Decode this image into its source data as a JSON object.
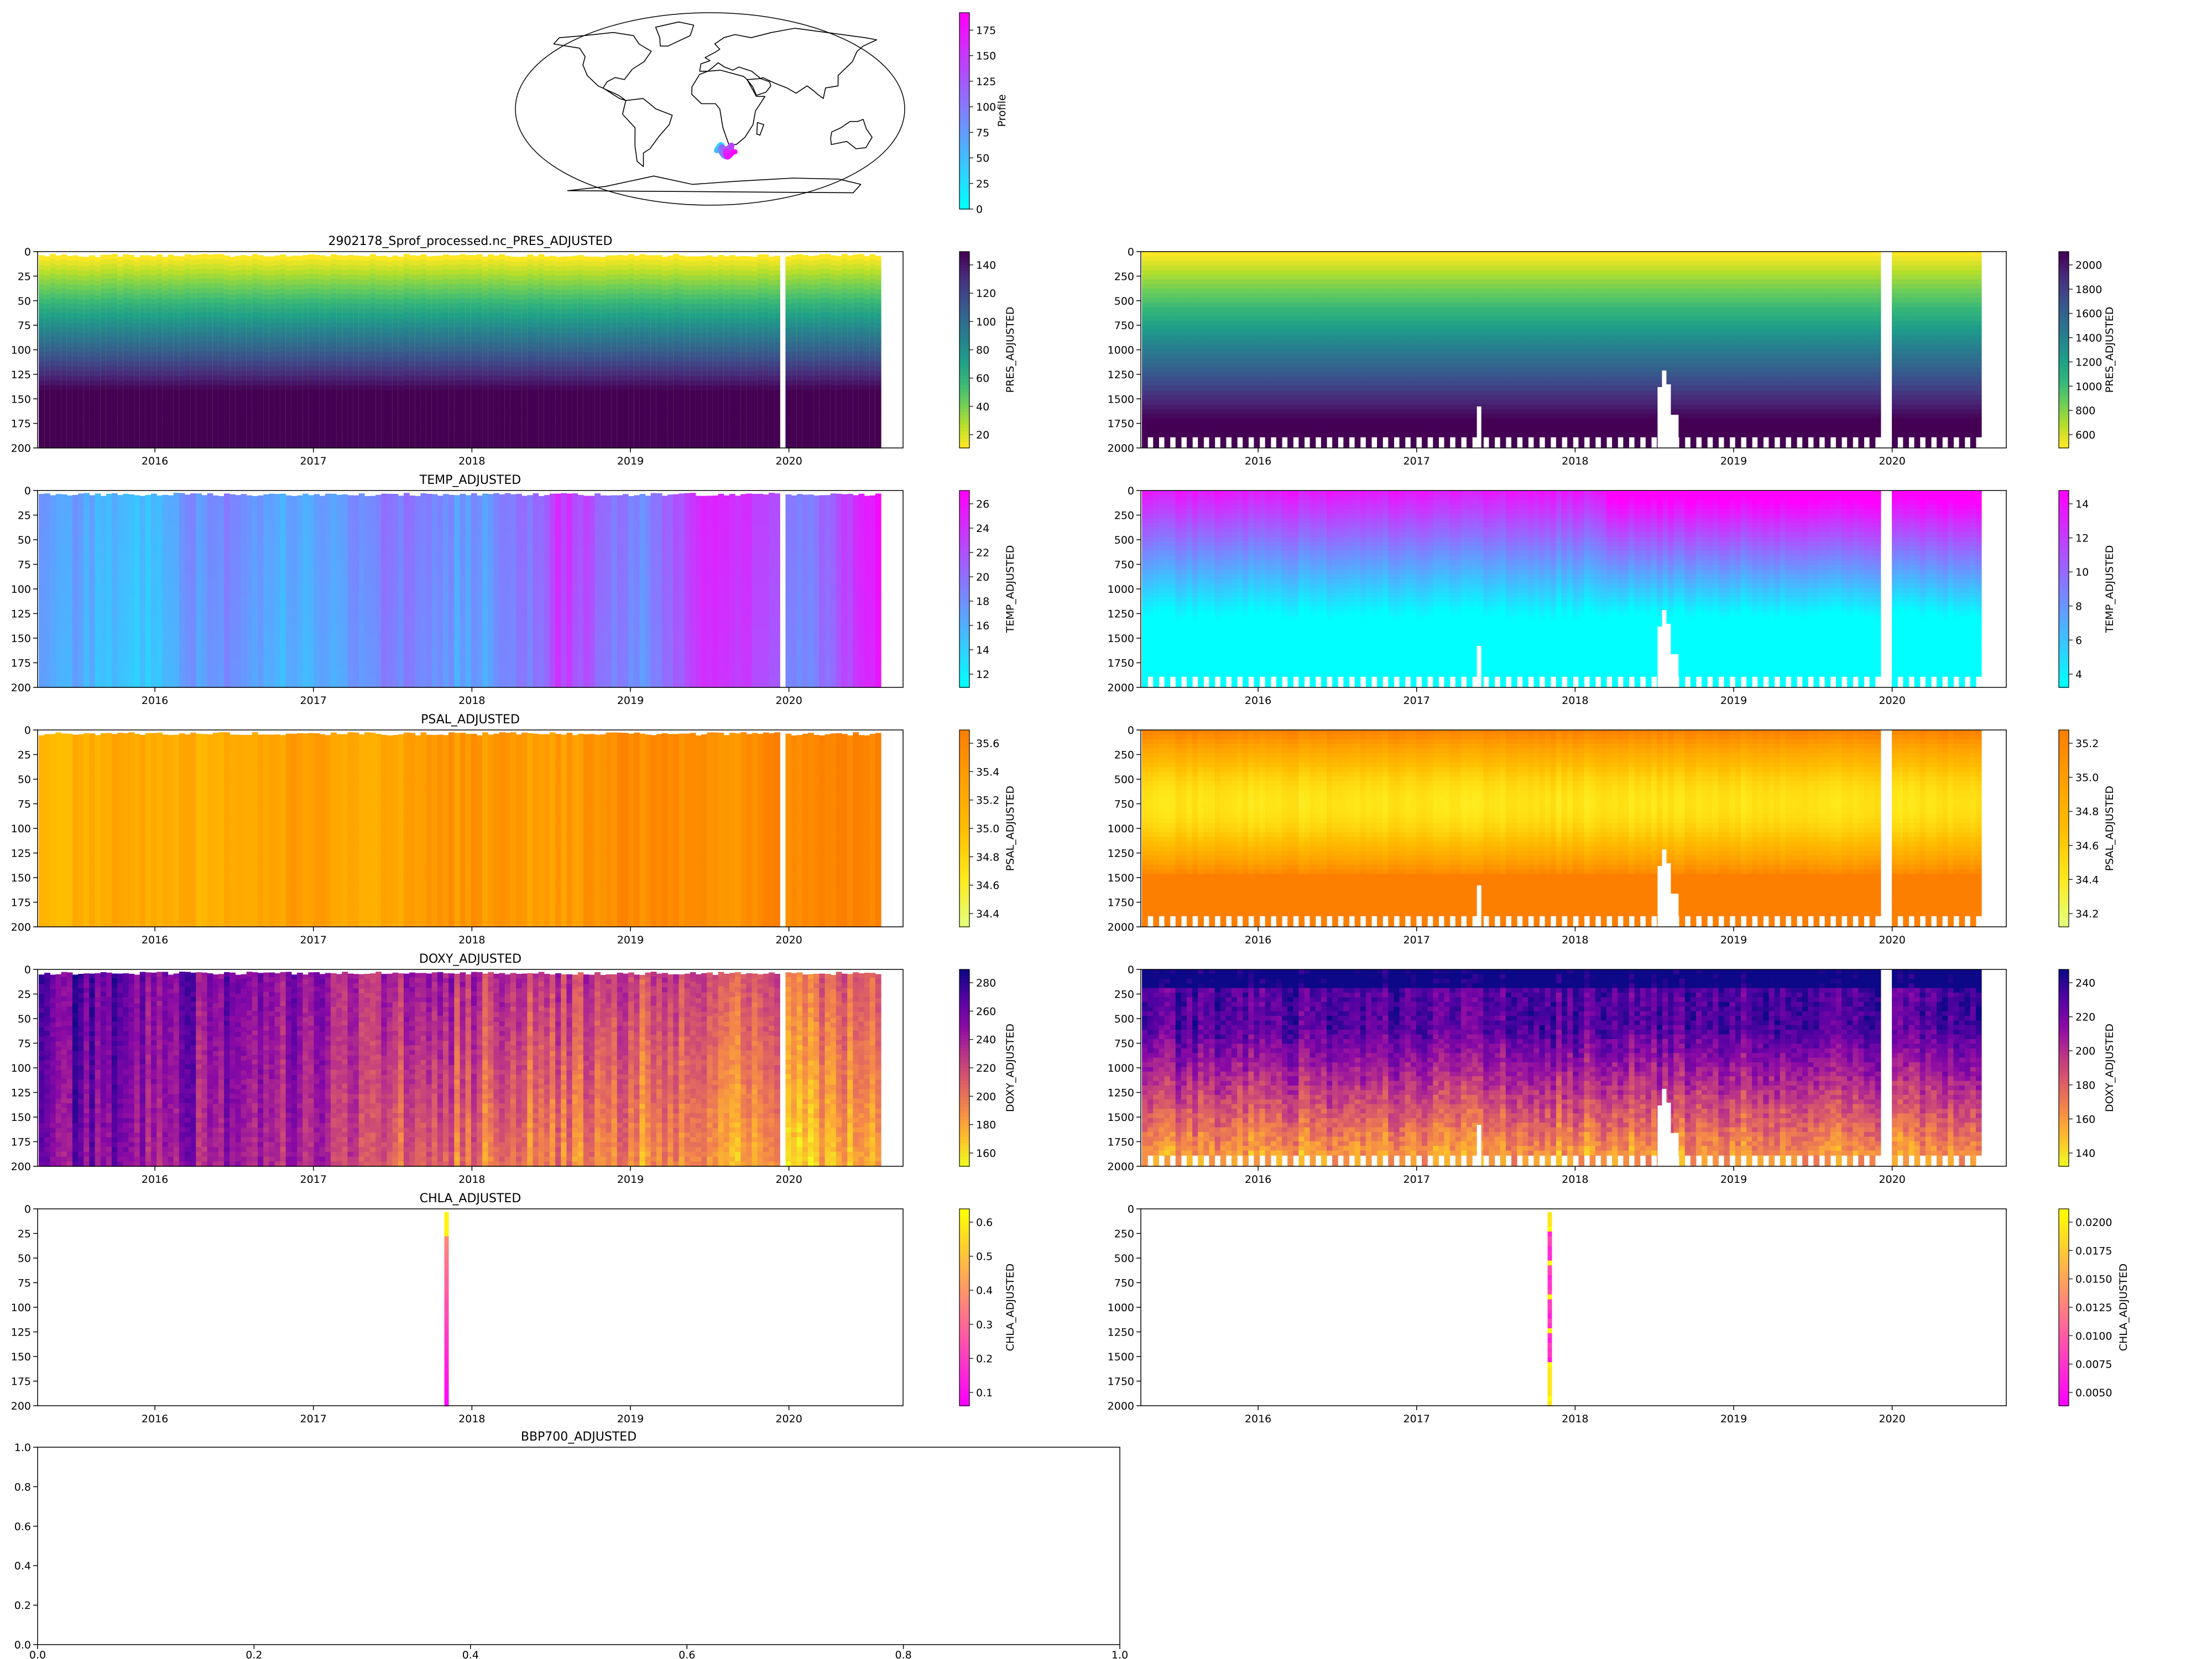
{
  "figure": {
    "float_id": "2902178"
  },
  "map": {
    "colorbar_label": "Profile",
    "colorbar_ticks": [
      "0",
      "25",
      "50",
      "75",
      "100",
      "125",
      "150",
      "175"
    ],
    "colormap": [
      "#00ffff",
      "#ff00ff"
    ],
    "track_region": "South Atlantic, south of Africa"
  },
  "chart_data": [
    {
      "type": "heatmap",
      "id": "pres-top",
      "title": "2902178_Sprof_processed.nc_PRES_ADJUSTED",
      "ylabel": "",
      "xlabel": "",
      "xticks": [
        "2016",
        "2017",
        "2018",
        "2019",
        "2020"
      ],
      "yticks": [
        "0",
        "25",
        "50",
        "75",
        "100",
        "125",
        "150",
        "175",
        "200"
      ],
      "ylim": [
        200,
        0
      ],
      "colorbar": {
        "label": "PRES_ADJUSTED",
        "ticks": [
          "20",
          "40",
          "60",
          "80",
          "100",
          "120",
          "140"
        ],
        "colormap": "viridis_r"
      },
      "x_range": [
        "2015-04",
        "2020-06"
      ]
    },
    {
      "type": "heatmap",
      "id": "pres-full",
      "title": "",
      "xticks": [
        "2016",
        "2017",
        "2018",
        "2019",
        "2020"
      ],
      "yticks": [
        "0",
        "250",
        "500",
        "750",
        "1000",
        "1250",
        "1500",
        "1750",
        "2000"
      ],
      "ylim": [
        2000,
        0
      ],
      "colorbar": {
        "label": "PRES_ADJUSTED",
        "ticks": [
          "600",
          "800",
          "1000",
          "1200",
          "1400",
          "1600",
          "1800",
          "2000"
        ],
        "colormap": "viridis_r"
      }
    },
    {
      "type": "heatmap",
      "id": "temp-top",
      "title": "TEMP_ADJUSTED",
      "xticks": [
        "2016",
        "2017",
        "2018",
        "2019",
        "2020"
      ],
      "yticks": [
        "0",
        "25",
        "50",
        "75",
        "100",
        "125",
        "150",
        "175",
        "200"
      ],
      "ylim": [
        200,
        0
      ],
      "colorbar": {
        "label": "TEMP_ADJUSTED",
        "ticks": [
          "12",
          "14",
          "16",
          "18",
          "20",
          "22",
          "24",
          "26"
        ],
        "colormap": "cool"
      }
    },
    {
      "type": "heatmap",
      "id": "temp-full",
      "title": "",
      "xticks": [
        "2016",
        "2017",
        "2018",
        "2019",
        "2020"
      ],
      "yticks": [
        "0",
        "250",
        "500",
        "750",
        "1000",
        "1250",
        "1500",
        "1750",
        "2000"
      ],
      "ylim": [
        2000,
        0
      ],
      "colorbar": {
        "label": "TEMP_ADJUSTED",
        "ticks": [
          "4",
          "6",
          "8",
          "10",
          "12",
          "14"
        ],
        "colormap": "cool"
      }
    },
    {
      "type": "heatmap",
      "id": "psal-top",
      "title": "PSAL_ADJUSTED",
      "xticks": [
        "2016",
        "2017",
        "2018",
        "2019",
        "2020"
      ],
      "yticks": [
        "0",
        "25",
        "50",
        "75",
        "100",
        "125",
        "150",
        "175",
        "200"
      ],
      "ylim": [
        200,
        0
      ],
      "colorbar": {
        "label": "PSAL_ADJUSTED",
        "ticks": [
          "34.4",
          "34.6",
          "34.8",
          "35.0",
          "35.2",
          "35.4",
          "35.6"
        ],
        "colormap": "Wistia"
      }
    },
    {
      "type": "heatmap",
      "id": "psal-full",
      "title": "",
      "xticks": [
        "2016",
        "2017",
        "2018",
        "2019",
        "2020"
      ],
      "yticks": [
        "0",
        "250",
        "500",
        "750",
        "1000",
        "1250",
        "1500",
        "1750",
        "2000"
      ],
      "ylim": [
        2000,
        0
      ],
      "colorbar": {
        "label": "PSAL_ADJUSTED",
        "ticks": [
          "34.2",
          "34.4",
          "34.6",
          "34.8",
          "35.0",
          "35.2"
        ],
        "colormap": "Wistia"
      }
    },
    {
      "type": "heatmap",
      "id": "doxy-top",
      "title": "DOXY_ADJUSTED",
      "xticks": [
        "2016",
        "2017",
        "2018",
        "2019",
        "2020"
      ],
      "yticks": [
        "0",
        "25",
        "50",
        "75",
        "100",
        "125",
        "150",
        "175",
        "200"
      ],
      "ylim": [
        200,
        0
      ],
      "colorbar": {
        "label": "DOXY_ADJUSTED",
        "ticks": [
          "160",
          "180",
          "200",
          "220",
          "240",
          "260",
          "280"
        ],
        "colormap": "plasma_r"
      }
    },
    {
      "type": "heatmap",
      "id": "doxy-full",
      "title": "",
      "xticks": [
        "2016",
        "2017",
        "2018",
        "2019",
        "2020"
      ],
      "yticks": [
        "0",
        "250",
        "500",
        "750",
        "1000",
        "1250",
        "1500",
        "1750",
        "2000"
      ],
      "ylim": [
        2000,
        0
      ],
      "colorbar": {
        "label": "DOXY_ADJUSTED",
        "ticks": [
          "140",
          "160",
          "180",
          "200",
          "220",
          "240"
        ],
        "colormap": "plasma_r"
      }
    },
    {
      "type": "heatmap",
      "id": "chla-top",
      "title": "CHLA_ADJUSTED",
      "xticks": [
        "2016",
        "2017",
        "2018",
        "2019",
        "2020"
      ],
      "yticks": [
        "0",
        "25",
        "50",
        "75",
        "100",
        "125",
        "150",
        "175",
        "200"
      ],
      "ylim": [
        200,
        0
      ],
      "colorbar": {
        "label": "CHLA_ADJUSTED",
        "ticks": [
          "0.1",
          "0.2",
          "0.3",
          "0.4",
          "0.5",
          "0.6"
        ],
        "colormap": "spring"
      },
      "single_profile_date": "2017-11"
    },
    {
      "type": "heatmap",
      "id": "chla-full",
      "title": "",
      "xticks": [
        "2016",
        "2017",
        "2018",
        "2019",
        "2020"
      ],
      "yticks": [
        "0",
        "250",
        "500",
        "750",
        "1000",
        "1250",
        "1500",
        "1750",
        "2000"
      ],
      "ylim": [
        2000,
        0
      ],
      "colorbar": {
        "label": "CHLA_ADJUSTED",
        "ticks": [
          "0.0050",
          "0.0075",
          "0.0100",
          "0.0125",
          "0.0150",
          "0.0175",
          "0.0200"
        ],
        "colormap": "spring"
      },
      "single_profile_date": "2017-11"
    },
    {
      "type": "heatmap",
      "id": "bbp700",
      "title": "BBP700_ADJUSTED",
      "xticks": [
        "0.0",
        "0.2",
        "0.4",
        "0.6",
        "0.8",
        "1.0"
      ],
      "yticks": [
        "0.0",
        "0.2",
        "0.4",
        "0.6",
        "0.8",
        "1.0"
      ],
      "xlim": [
        0,
        1
      ],
      "ylim": [
        0,
        1
      ],
      "empty": true
    }
  ]
}
